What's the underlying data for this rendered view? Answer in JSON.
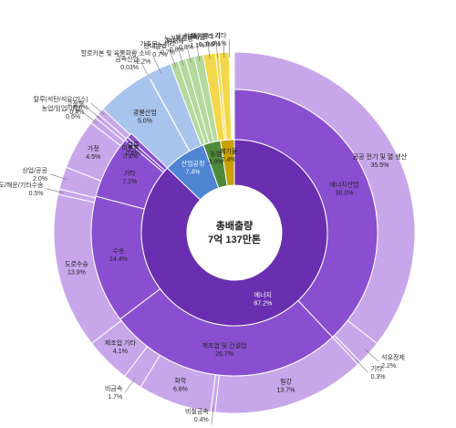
{
  "chart_data": {
    "type": "sunburst",
    "title": "",
    "center": {
      "line1": "총배출량",
      "line2": "7억 137만톤"
    },
    "colors": {
      "energy_inner": "#6a2fb0",
      "energy_middle": "#8a4fd0",
      "energy_outer": "#c7a7ea",
      "industry_inner": "#4f84d2",
      "industry_outer": "#a9c4ec",
      "agriculture_inner": "#4f8a3a",
      "agriculture_outer": "#b3d99c",
      "waste_inner": "#c8a000",
      "waste_outer": "#f2d84a",
      "stroke": "#ffffff"
    },
    "inner": [
      {
        "name": "에너지",
        "value": "87.2%",
        "pct": 87.2,
        "group": "energy"
      },
      {
        "name": "산업공정",
        "value": "7.4%",
        "pct": 7.4,
        "group": "industry"
      },
      {
        "name": "농업",
        "value": "3.0%",
        "pct": 3.0,
        "group": "agriculture"
      },
      {
        "name": "폐기물",
        "value": "2.4%",
        "pct": 2.4,
        "group": "waste"
      }
    ],
    "middle": [
      {
        "name": "에너지산업",
        "value": "38.0%",
        "pct": 38.0,
        "group": "energy"
      },
      {
        "name": "제조업 및 건설업",
        "value": "26.7%",
        "pct": 26.7,
        "group": "energy"
      },
      {
        "name": "수송",
        "value": "14.4%",
        "pct": 14.4,
        "group": "energy"
      },
      {
        "name": "기타",
        "value": "7.1%",
        "pct": 7.1,
        "group": "energy"
      },
      {
        "name": "미분류",
        "value": "0.4%",
        "pct": 0.4,
        "group": "energy"
      },
      {
        "name": "탈루",
        "value": "0.6%",
        "pct": 0.6,
        "group": "energy"
      }
    ],
    "outer": [
      {
        "name": "공공 전기 및 열 생산",
        "value": "35.5%",
        "pct": 35.5,
        "group": "energy"
      },
      {
        "name": "석유정제",
        "value": "2.2%",
        "pct": 2.2,
        "group": "energy"
      },
      {
        "name": "기타",
        "value": "0.3%",
        "pct": 0.3,
        "group": "energy"
      },
      {
        "name": "철강",
        "value": "13.7%",
        "pct": 13.7,
        "group": "energy"
      },
      {
        "name": "비철금속",
        "value": "0.4%",
        "pct": 0.4,
        "group": "energy"
      },
      {
        "name": "화학",
        "value": "6.6%",
        "pct": 6.6,
        "group": "energy"
      },
      {
        "name": "비금속",
        "value": "1.7%",
        "pct": 1.7,
        "group": "energy"
      },
      {
        "name": "제조업 기타",
        "value": "4.1%",
        "pct": 4.1,
        "group": "energy"
      },
      {
        "name": "도로수송",
        "value": "13.9%",
        "pct": 13.9,
        "group": "energy"
      },
      {
        "name": "항공/철도/해운/기타수송",
        "value": "0.5%",
        "pct": 0.5,
        "group": "energy"
      },
      {
        "name": "상업/공공",
        "value": "2.0%",
        "pct": 2.0,
        "group": "energy"
      },
      {
        "name": "가정",
        "value": "4.5%",
        "pct": 4.5,
        "group": "energy"
      },
      {
        "name": "농업/임업/어업",
        "value": "0.6%",
        "pct": 0.6,
        "group": "energy"
      },
      {
        "name": "고정형",
        "value": "0.4%",
        "pct": 0.4,
        "group": "energy"
      },
      {
        "name": "탈루(석탄/석유/가스)",
        "value": "0.6%",
        "pct": 0.6,
        "group": "energy"
      },
      {
        "name": "광물산업",
        "value": "5.0%",
        "pct": 5.0,
        "group": "industry"
      },
      {
        "name": "금속산업",
        "value": "0.03%",
        "pct": 0.03,
        "group": "industry"
      },
      {
        "name": "할로카본 및 육불화황 소비",
        "value": "2.2%",
        "pct": 2.2,
        "group": "industry"
      },
      {
        "name": "장내발효",
        "value": "0.7%",
        "pct": 0.7,
        "group": "agriculture"
      },
      {
        "name": "가축분뇨처리",
        "value": "0.7%",
        "pct": 0.7,
        "group": "agriculture"
      },
      {
        "name": "벼재배",
        "value": "0.8%",
        "pct": 0.8,
        "group": "agriculture"
      },
      {
        "name": "농경지토양",
        "value": "0.8%",
        "pct": 0.8,
        "group": "agriculture"
      },
      {
        "name": "폐기물매립",
        "value": "1.1%",
        "pct": 1.1,
        "group": "waste"
      },
      {
        "name": "하폐수처리",
        "value": "0.3%",
        "pct": 0.3,
        "group": "waste"
      },
      {
        "name": "폐기물소각",
        "value": "0.9%",
        "pct": 0.9,
        "group": "waste"
      },
      {
        "name": "기타",
        "value": "0.1%",
        "pct": 0.1,
        "group": "waste"
      }
    ]
  }
}
